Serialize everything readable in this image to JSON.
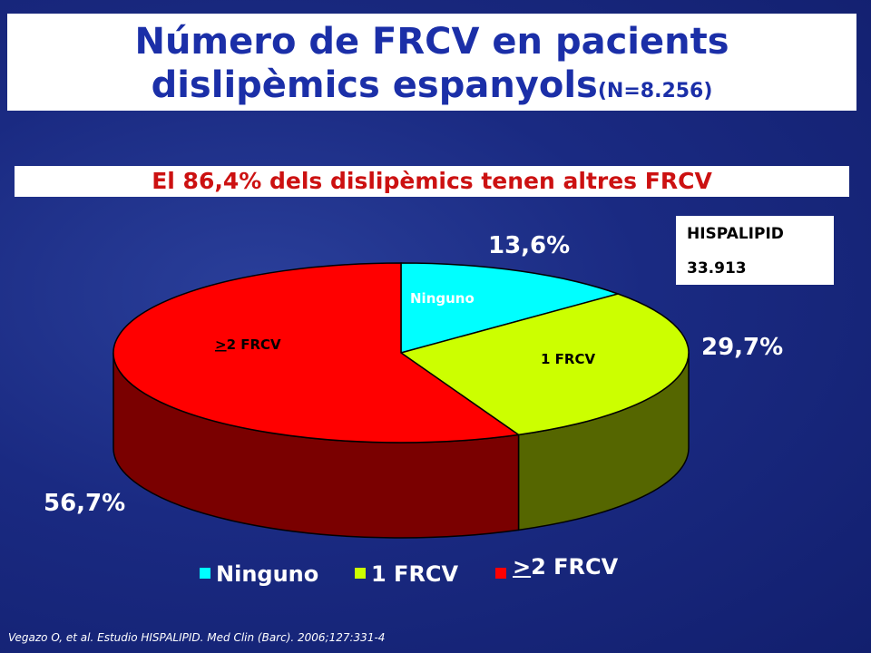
{
  "title": {
    "line1": "Número de FRCV en pacients",
    "line2_main": "dislipèmics espanyols",
    "line2_n": "(N=8.256)"
  },
  "subtitle": "El 86,4% dels  dislipèmics tenen altres FRCV",
  "info_box": {
    "line1": "HISPALIPID",
    "line2": "33.913"
  },
  "citation": "Vegazo O, et al. Estudio HISPALIPID. Med Clin (Barc). 2006;127:331-4",
  "colors": {
    "ninguno": "#00ffff",
    "one_frcv": "#ccff00",
    "one_frcv_side": "#556600",
    "two_frcv": "#ff0000",
    "two_frcv_side": "#7a0000",
    "title": "#1b2fa8",
    "subtitle": "#cc1111"
  },
  "chart_data": {
    "type": "pie",
    "style": "3d",
    "categories": [
      "Ninguno",
      "1 FRCV",
      ">2 FRCV"
    ],
    "values": [
      13.6,
      29.7,
      56.7
    ],
    "value_labels": [
      "13,6%",
      "29,7%",
      "56,7%"
    ],
    "slice_labels": {
      "ninguno": "Ninguno",
      "one_frcv": "1 FRCV",
      "two_frcv_ge": ">",
      "two_frcv_rest": "2 FRCV"
    },
    "legend": {
      "position": "bottom",
      "ninguno": "Ninguno",
      "one_frcv": "1 FRCV",
      "two_frcv_ge": ">",
      "two_frcv_rest": "2 FRCV"
    }
  }
}
